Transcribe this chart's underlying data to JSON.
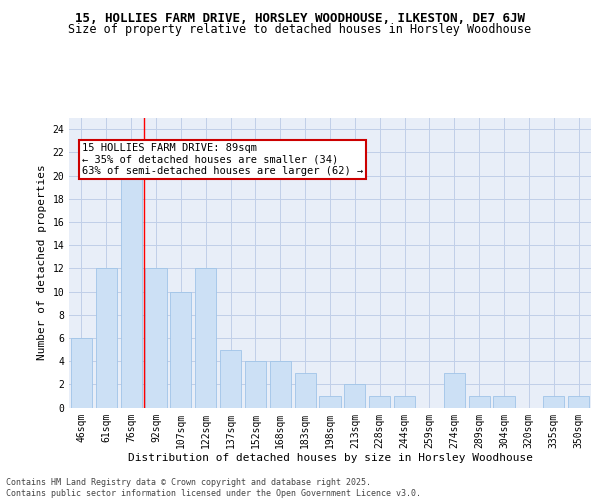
{
  "title": "15, HOLLIES FARM DRIVE, HORSLEY WOODHOUSE, ILKESTON, DE7 6JW",
  "subtitle": "Size of property relative to detached houses in Horsley Woodhouse",
  "xlabel": "Distribution of detached houses by size in Horsley Woodhouse",
  "ylabel": "Number of detached properties",
  "categories": [
    "46sqm",
    "61sqm",
    "76sqm",
    "92sqm",
    "107sqm",
    "122sqm",
    "137sqm",
    "152sqm",
    "168sqm",
    "183sqm",
    "198sqm",
    "213sqm",
    "228sqm",
    "244sqm",
    "259sqm",
    "274sqm",
    "289sqm",
    "304sqm",
    "320sqm",
    "335sqm",
    "350sqm"
  ],
  "values": [
    6,
    12,
    20,
    12,
    10,
    12,
    5,
    4,
    4,
    3,
    1,
    2,
    1,
    1,
    0,
    3,
    1,
    1,
    0,
    1,
    1
  ],
  "bar_color": "#cce0f5",
  "bar_edge_color": "#a0c4e8",
  "red_line_index": 2,
  "annotation_text": "15 HOLLIES FARM DRIVE: 89sqm\n← 35% of detached houses are smaller (34)\n63% of semi-detached houses are larger (62) →",
  "annotation_box_color": "#ffffff",
  "annotation_box_edge": "#cc0000",
  "ylim": [
    0,
    25
  ],
  "yticks": [
    0,
    2,
    4,
    6,
    8,
    10,
    12,
    14,
    16,
    18,
    20,
    22,
    24
  ],
  "footer": "Contains HM Land Registry data © Crown copyright and database right 2025.\nContains public sector information licensed under the Open Government Licence v3.0.",
  "background_color": "#e8eef8",
  "grid_color": "#c0cfe8",
  "title_fontsize": 9,
  "subtitle_fontsize": 8.5,
  "xlabel_fontsize": 8,
  "ylabel_fontsize": 8,
  "tick_fontsize": 7,
  "footer_fontsize": 6,
  "annotation_fontsize": 7.5
}
